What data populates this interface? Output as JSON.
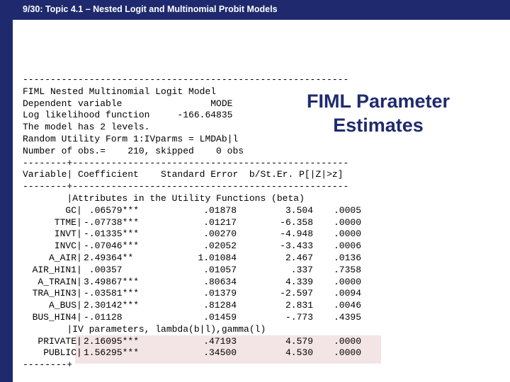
{
  "header": {
    "title": "9/30: Topic 4.1 – Nested Logit and Multinomial Probit Models"
  },
  "slide": {
    "heading_line1": "FIML Parameter",
    "heading_line2": "Estimates"
  },
  "output": {
    "rule_top": "-----------------------------------------------------------",
    "info_lines": [
      "FIML Nested Multinomial Logit Model",
      "Dependent variable                MODE",
      "Log likelihood function     -166.64835",
      "The model has 2 levels.",
      "Random Utility Form 1:IVparms = LMDAb|l",
      "Number of obs.=    210, skipped    0 obs"
    ],
    "rule_split": "--------+--------------------------------------------------",
    "column_header": "Variable| Coefficient    Standard Error  b/St.Er. P[|Z|>z]",
    "rule_split2": "--------+--------------------------------------------------",
    "section1": "        |Attributes in the Utility Functions (beta)",
    "rows1": [
      {
        "var": "GC",
        "coef": " .06579***",
        "se": ".01878",
        "z": "3.504",
        "p": ".0005"
      },
      {
        "var": "TTME",
        "coef": "-.07738***",
        "se": ".01217",
        "z": "-6.358",
        "p": ".0000"
      },
      {
        "var": "INVT",
        "coef": "-.01335***",
        "se": ".00270",
        "z": "-4.948",
        "p": ".0000"
      },
      {
        "var": "INVC",
        "coef": "-.07046***",
        "se": ".02052",
        "z": "-3.433",
        "p": ".0006"
      },
      {
        "var": "A_AIR",
        "coef": "2.49364**",
        "se": "1.01084",
        "z": "2.467",
        "p": ".0136"
      },
      {
        "var": "AIR_HIN1",
        "coef": " .00357",
        "se": ".01057",
        "z": ".337",
        "p": ".7358"
      },
      {
        "var": "A_TRAIN",
        "coef": "3.49867***",
        "se": ".80634",
        "z": "4.339",
        "p": ".0000"
      },
      {
        "var": "TRA_HIN3",
        "coef": "-.03581***",
        "se": ".01379",
        "z": "-2.597",
        "p": ".0094"
      },
      {
        "var": "A_BUS",
        "coef": "2.30142***",
        "se": ".81284",
        "z": "2.831",
        "p": ".0046"
      },
      {
        "var": "BUS_HIN4",
        "coef": "-.01128",
        "se": ".01459",
        "z": "-.773",
        "p": ".4395"
      }
    ],
    "section2": "        |IV parameters, lambda(b|l),gamma(l)",
    "rows2": [
      {
        "var": "PRIVATE",
        "coef": "2.16095***",
        "se": ".47193",
        "z": "4.579",
        "p": ".0000"
      },
      {
        "var": "PUBLIC",
        "coef": "1.56295***",
        "se": ".34500",
        "z": "4.530",
        "p": ".0000"
      }
    ],
    "rule_bottom": "--------+"
  },
  "colors": {
    "bar": "#1f2a6e",
    "heading": "#1f2a6e",
    "highlight": "#f3e5e5"
  }
}
